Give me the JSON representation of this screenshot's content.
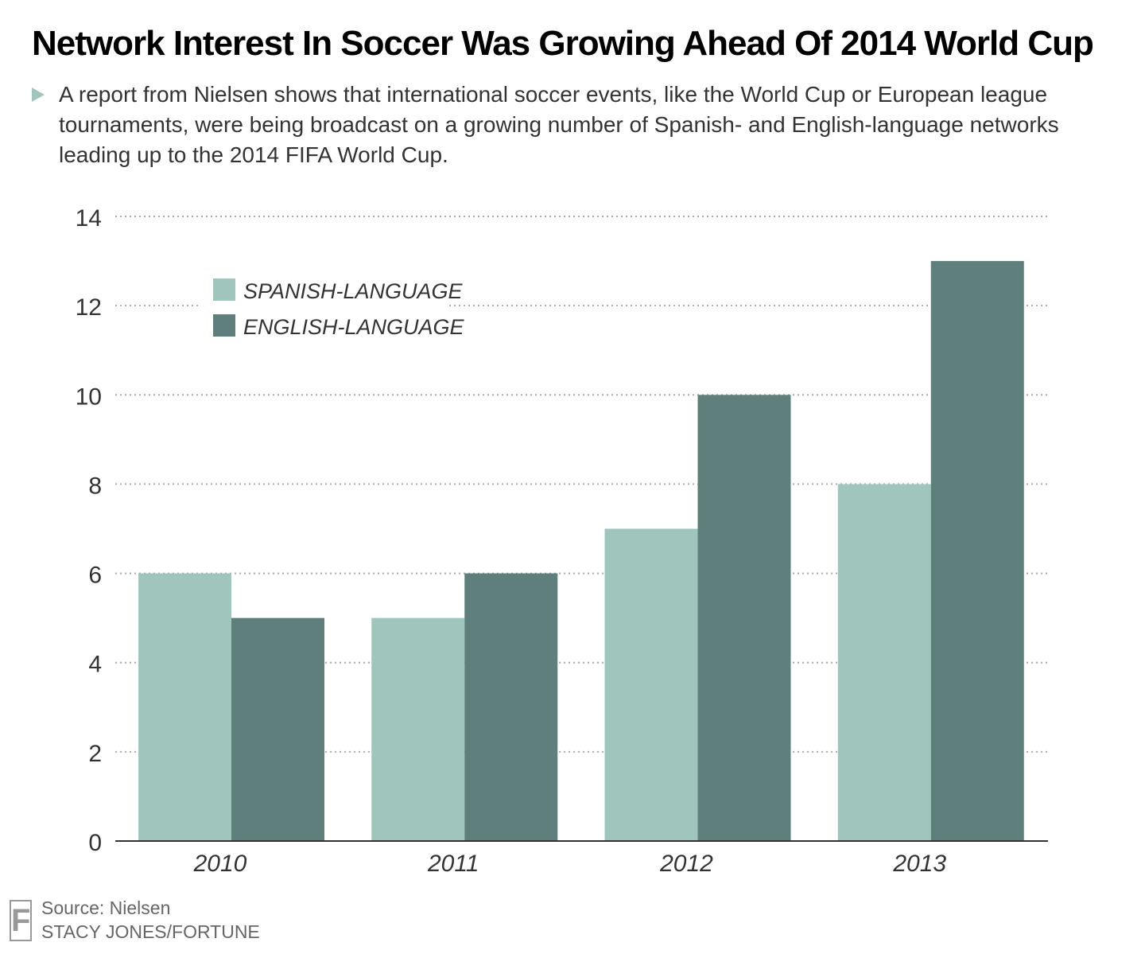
{
  "title": "Network Interest In Soccer Was Growing Ahead Of 2014 World Cup",
  "subtitle": "A report from Nielsen shows that international soccer events, like the World Cup or European league tournaments, were being broadcast on a growing number of Spanish- and English-language networks leading up to the 2014 FIFA World Cup.",
  "source": "Source: Nielsen",
  "credit": "STACY JONES/FORTUNE",
  "logo_letter": "F",
  "colors": {
    "spanish": "#9fc5bc",
    "english": "#5f7f7c",
    "gridline": "#aaaaaa",
    "axis": "#333333"
  },
  "chart_data": {
    "type": "bar",
    "categories": [
      "2010",
      "2011",
      "2012",
      "2013"
    ],
    "series": [
      {
        "name": "SPANISH-LANGUAGE",
        "values": [
          6,
          5,
          7,
          8
        ],
        "color": "#9fc5bc"
      },
      {
        "name": "ENGLISH-LANGUAGE",
        "values": [
          5,
          6,
          10,
          13
        ],
        "color": "#5f7f7c"
      }
    ],
    "ylim": [
      0,
      14
    ],
    "yticks": [
      0,
      2,
      4,
      6,
      8,
      10,
      12,
      14
    ],
    "xlabel": "",
    "ylabel": "",
    "grid": true,
    "legend_position": "top-left"
  }
}
